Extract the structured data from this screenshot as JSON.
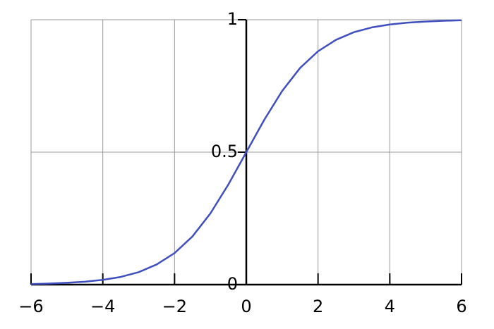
{
  "chart_data": {
    "type": "line",
    "x": [
      -6,
      -5.5,
      -5,
      -4.5,
      -4,
      -3.5,
      -3,
      -2.5,
      -2,
      -1.5,
      -1,
      -0.5,
      0,
      0.5,
      1,
      1.5,
      2,
      2.5,
      3,
      3.5,
      4,
      4.5,
      5,
      5.5,
      6
    ],
    "series": [
      {
        "color": "#3f4fbf",
        "values": [
          0.002,
          0.004,
          0.007,
          0.011,
          0.018,
          0.029,
          0.047,
          0.076,
          0.119,
          0.182,
          0.269,
          0.378,
          0.5,
          0.622,
          0.731,
          0.818,
          0.881,
          0.924,
          0.953,
          0.971,
          0.982,
          0.989,
          0.993,
          0.996,
          0.998
        ]
      }
    ],
    "xlim": [
      -6,
      6
    ],
    "ylim": [
      0,
      1
    ],
    "xticks": [
      {
        "value": -6,
        "label": "−6"
      },
      {
        "value": -4,
        "label": "−4"
      },
      {
        "value": -2,
        "label": "−2"
      },
      0,
      2,
      4,
      6
    ],
    "yticks": [
      0,
      0.5,
      1
    ],
    "grid": true
  }
}
